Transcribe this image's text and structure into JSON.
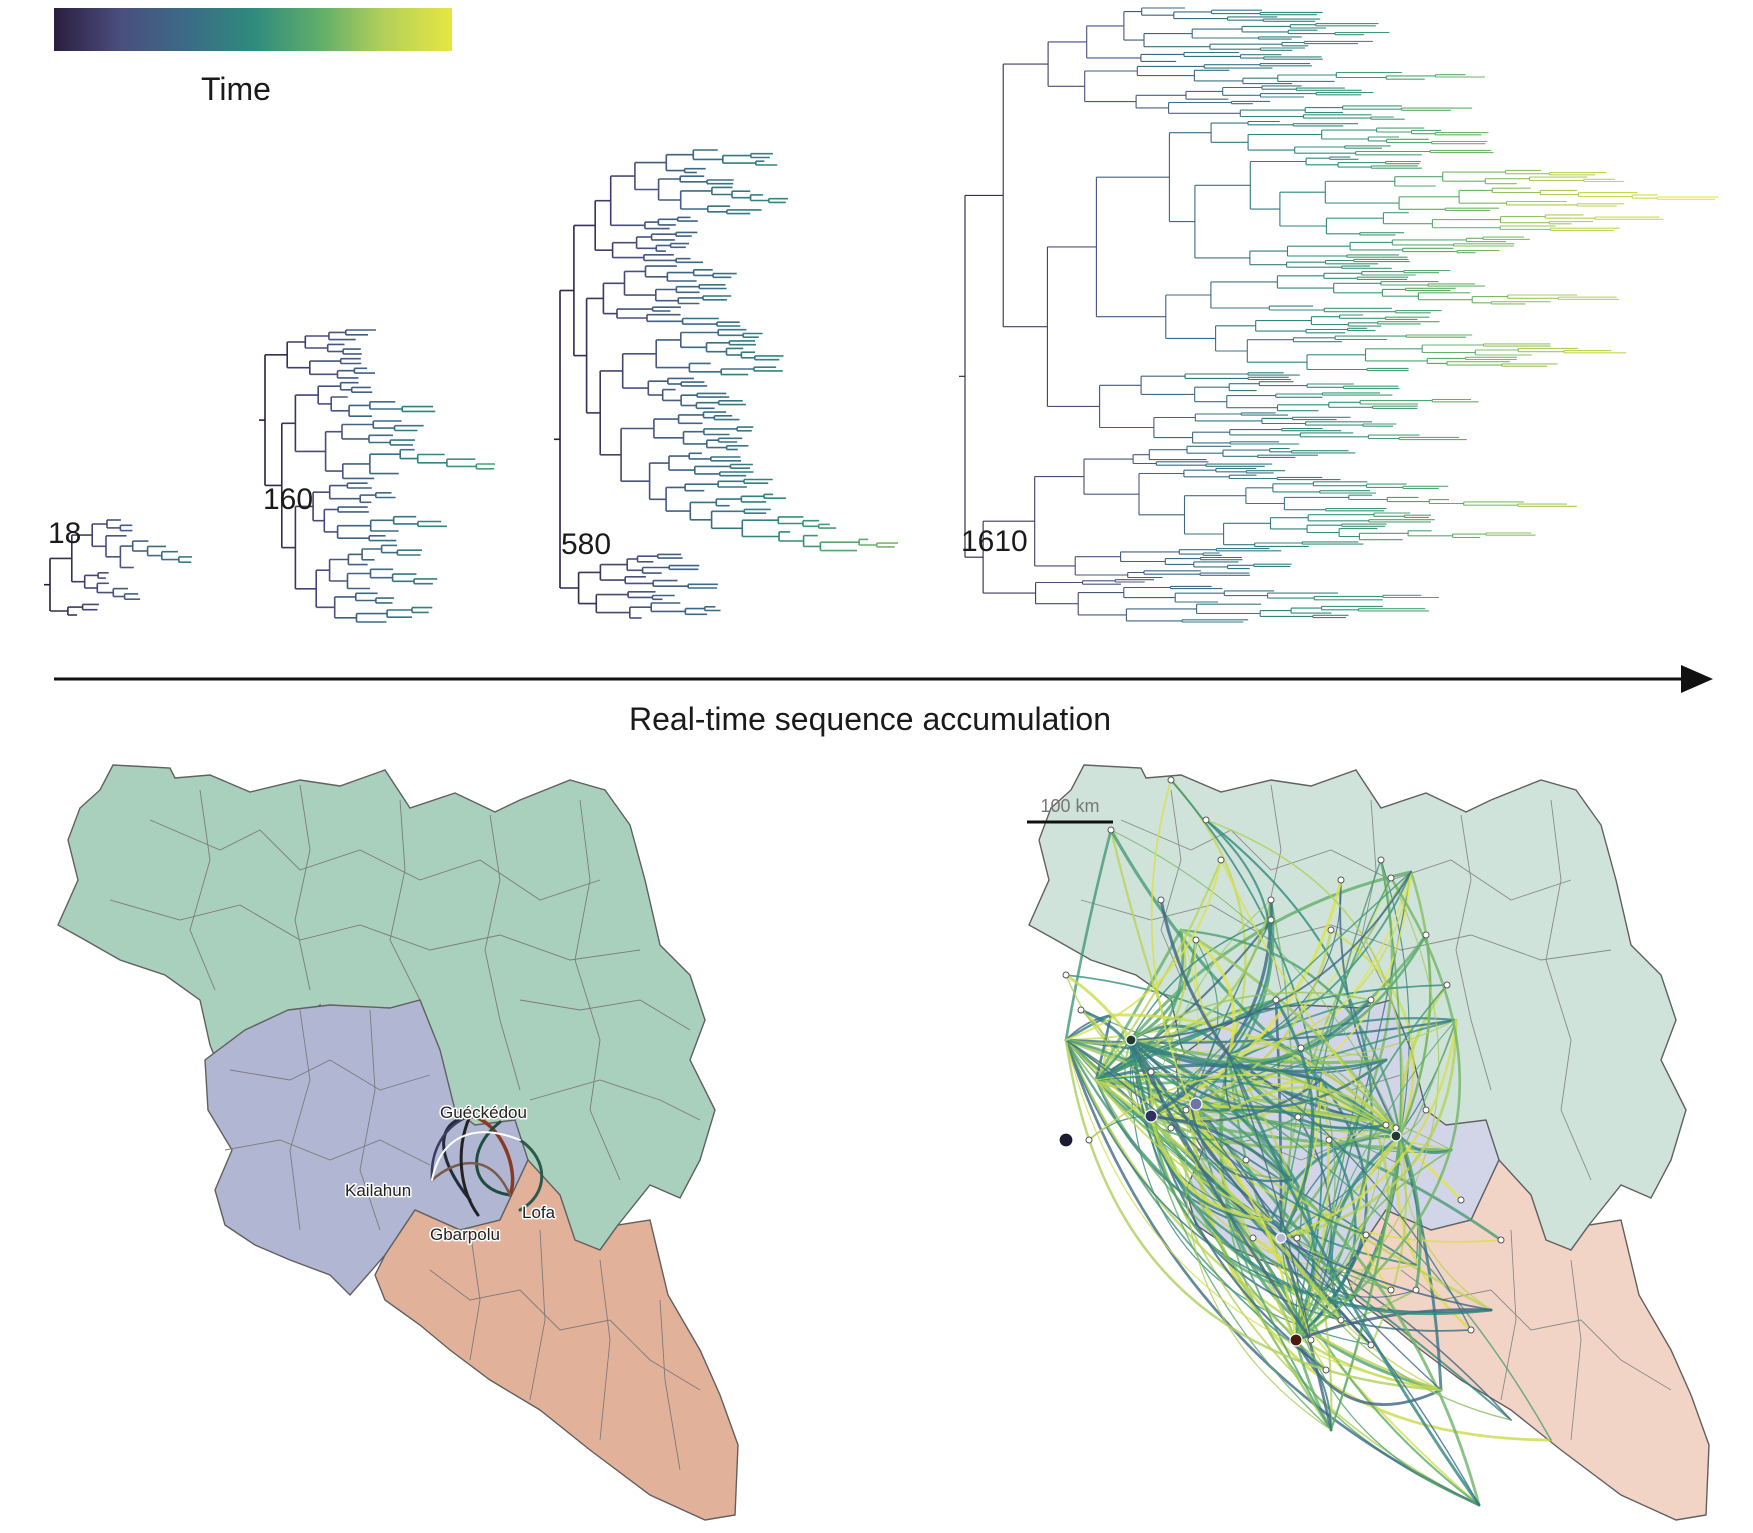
{
  "colorbar": {
    "label": "Time",
    "stops": [
      "#2b1e3f",
      "#4a4e7e",
      "#3b6b86",
      "#2f8a7e",
      "#5fae6a",
      "#b4d15a",
      "#e6e642"
    ]
  },
  "trees": [
    {
      "tip_count_label": "18",
      "tips": 18
    },
    {
      "tip_count_label": "160",
      "tips": 56
    },
    {
      "tip_count_label": "580",
      "tips": 120
    },
    {
      "tip_count_label": "1610",
      "tips": 260
    }
  ],
  "axis": {
    "label": "Real-time sequence accumulation"
  },
  "left_map": {
    "place_labels": [
      "Guéckédou",
      "Kailahun",
      "Gbarpolu",
      "Lofa"
    ],
    "country_colors": {
      "guinea": "#a9cfbd",
      "sierra_leone": "#b1b6d3",
      "liberia": "#e2b19a"
    }
  },
  "right_map": {
    "scale_bar_label": "100 km",
    "country_colors": {
      "guinea": "#cfe3da",
      "sierra_leone": "#d2d5e7",
      "liberia": "#f1d4c5"
    }
  }
}
